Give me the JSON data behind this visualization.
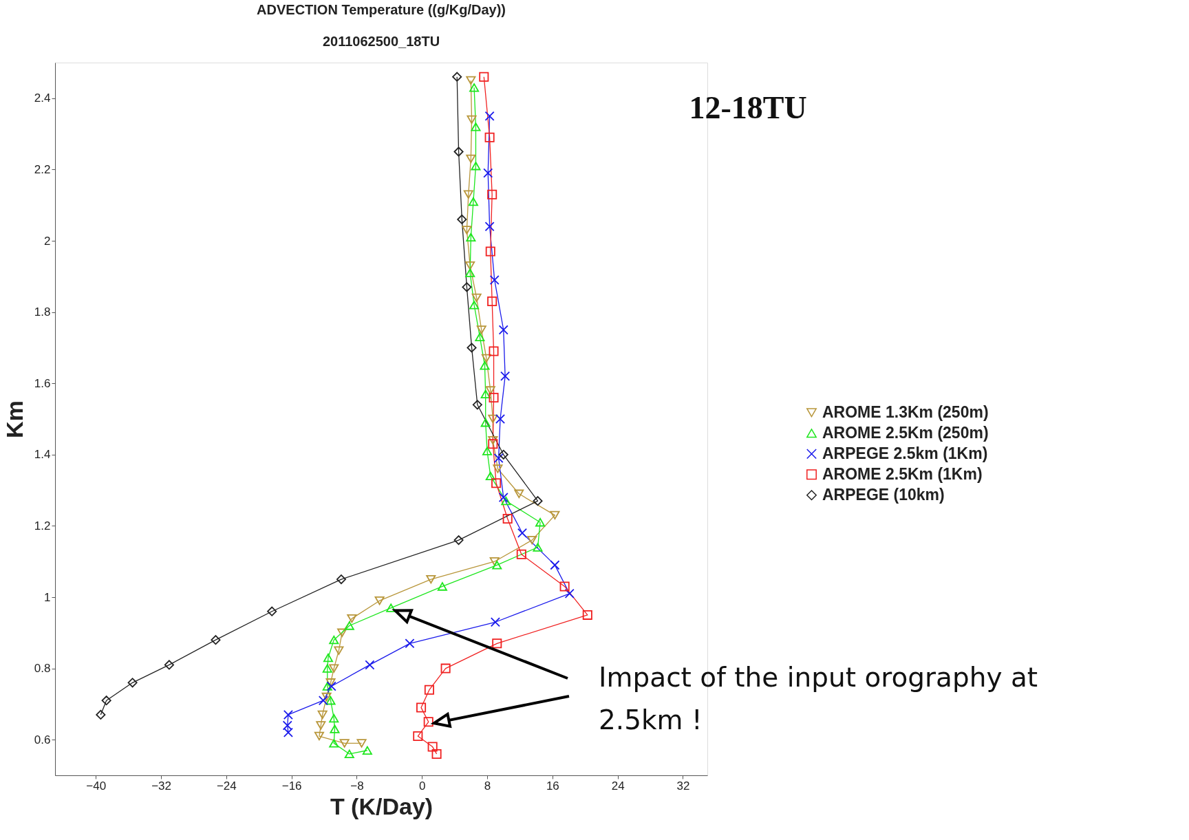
{
  "chart_data": {
    "type": "line",
    "title": "ADVECTION Temperature ((g/Kg/Day))",
    "subtitle": "2011062500_18TU",
    "xlabel": "T (K/Day)",
    "ylabel": "Km",
    "xlim": [
      -45,
      35
    ],
    "xticks": [
      -40,
      -32,
      -24,
      -16,
      -8,
      0,
      8,
      16,
      24,
      32
    ],
    "ylim": [
      0.5,
      2.5
    ],
    "yticks": [
      0.6,
      0.8,
      1,
      1.2,
      1.4,
      1.6,
      1.8,
      2,
      2.2,
      2.4
    ],
    "grid": false,
    "legend": "right",
    "line_style": "solid",
    "annotations": [
      "12-18TU",
      "Impact of the input orography  at\n2.5km !"
    ],
    "series": [
      {
        "name": "AROME 1.3Km (250m)",
        "color": "#b8963a",
        "marker": "triangle-down",
        "x": [
          6.0,
          6.1,
          6.0,
          5.7,
          5.5,
          5.9,
          6.7,
          7.3,
          7.9,
          8.4,
          8.7,
          8.7,
          9.3,
          11.9,
          16.3,
          13.5,
          8.9,
          1.1,
          -5.2,
          -8.6,
          -9.8,
          -10.2,
          -10.8,
          -11.2,
          -11.7,
          -12.2,
          -12.4,
          -12.6,
          -9.5,
          -7.4
        ],
        "values": [
          2.45,
          2.34,
          2.23,
          2.13,
          2.03,
          1.93,
          1.84,
          1.75,
          1.67,
          1.58,
          1.5,
          1.44,
          1.36,
          1.29,
          1.23,
          1.16,
          1.1,
          1.05,
          0.99,
          0.94,
          0.9,
          0.85,
          0.8,
          0.76,
          0.72,
          0.67,
          0.64,
          0.61,
          0.59,
          0.59
        ]
      },
      {
        "name": "AROME 2.5Km (250m)",
        "color": "#1ee61e",
        "marker": "triangle",
        "x": [
          6.4,
          6.6,
          6.6,
          6.3,
          6.0,
          5.9,
          6.4,
          7.1,
          7.7,
          7.8,
          7.8,
          8.0,
          8.4,
          10.3,
          14.5,
          14.2,
          9.2,
          2.5,
          -3.8,
          -8.9,
          -10.8,
          -11.5,
          -11.6,
          -11.6,
          -11.2,
          -10.8,
          -10.7,
          -10.8,
          -8.9,
          -6.7
        ],
        "values": [
          2.43,
          2.32,
          2.21,
          2.11,
          2.01,
          1.91,
          1.82,
          1.73,
          1.65,
          1.57,
          1.49,
          1.41,
          1.34,
          1.27,
          1.21,
          1.14,
          1.09,
          1.03,
          0.97,
          0.92,
          0.88,
          0.83,
          0.8,
          0.75,
          0.71,
          0.66,
          0.63,
          0.59,
          0.56,
          0.57
        ]
      },
      {
        "name": "ARPEGE 2.5km (1Km)",
        "color": "#1a1aeb",
        "marker": "cross",
        "x": [
          8.3,
          8.1,
          8.3,
          8.9,
          10.0,
          10.2,
          9.6,
          9.4,
          10.0,
          12.3,
          16.3,
          18.1,
          9.0,
          -1.5,
          -6.4,
          -11.1,
          -12.1,
          -16.4,
          -16.5,
          -16.4
        ],
        "values": [
          2.35,
          2.19,
          2.04,
          1.89,
          1.75,
          1.62,
          1.5,
          1.39,
          1.28,
          1.18,
          1.09,
          1.01,
          0.93,
          0.87,
          0.81,
          0.75,
          0.71,
          0.67,
          0.64,
          0.62
        ]
      },
      {
        "name": "AROME 2.5Km (1Km)",
        "color": "#f02020",
        "marker": "square",
        "x": [
          7.6,
          8.3,
          8.6,
          8.4,
          8.6,
          8.8,
          8.8,
          8.7,
          9.1,
          10.5,
          12.2,
          17.5,
          20.3,
          9.2,
          2.9,
          0.9,
          -0.1,
          0.8,
          -0.5,
          1.3,
          1.8
        ],
        "values": [
          2.46,
          2.29,
          2.13,
          1.97,
          1.83,
          1.69,
          1.56,
          1.43,
          1.32,
          1.22,
          1.12,
          1.03,
          0.95,
          0.87,
          0.8,
          0.74,
          0.69,
          0.65,
          0.61,
          0.58,
          0.56
        ]
      },
      {
        "name": "ARPEGE (10km)",
        "color": "#222222",
        "marker": "diamond",
        "x": [
          4.3,
          4.5,
          4.9,
          5.5,
          6.1,
          6.8,
          10.0,
          14.2,
          4.5,
          -9.9,
          -18.4,
          -25.3,
          -31.0,
          -35.5,
          -38.7,
          -39.4
        ],
        "values": [
          2.46,
          2.25,
          2.06,
          1.87,
          1.7,
          1.54,
          1.4,
          1.27,
          1.16,
          1.05,
          0.96,
          0.88,
          0.81,
          0.76,
          0.71,
          0.67
        ]
      }
    ]
  }
}
